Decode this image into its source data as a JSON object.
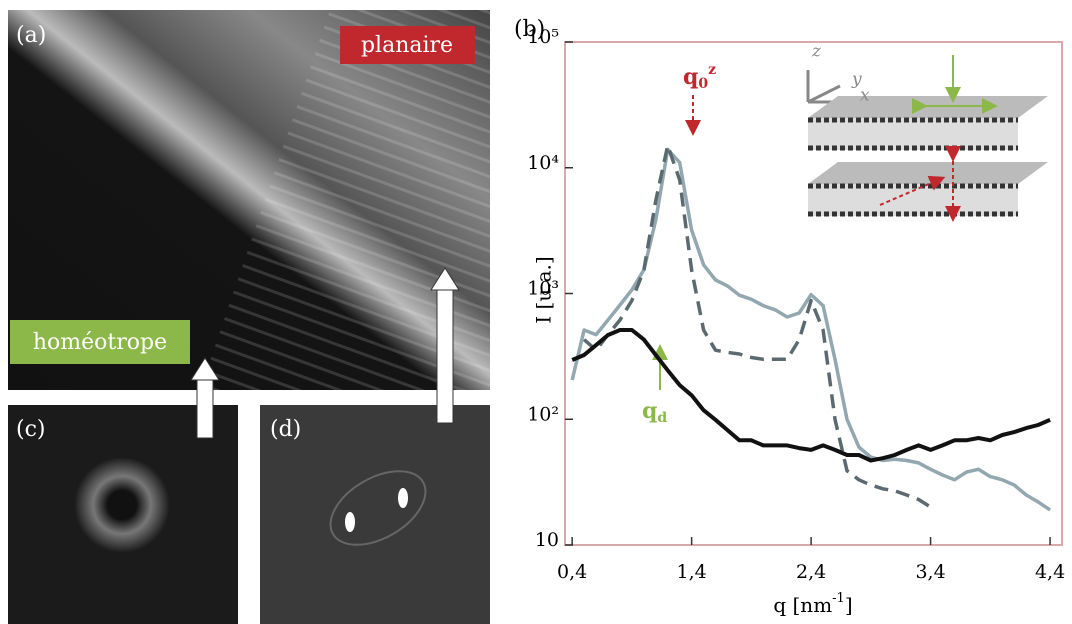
{
  "panels": {
    "a": {
      "label": "(a)",
      "planar": "planaire",
      "homeotropic": "homéotrope"
    },
    "c": {
      "label": "(c)"
    },
    "d": {
      "label": "(d)"
    }
  },
  "chart_data": {
    "type": "line",
    "panel_label": "(b)",
    "y_label": "I [u.a.]",
    "x_label": {
      "text": "q [nm",
      "sup": "-1",
      "end": "]"
    },
    "log_y": true,
    "xlim": [
      0.34,
      4.5
    ],
    "ylim": [
      10,
      100000
    ],
    "xticks": [
      {
        "value": 0.4,
        "label": "0,4"
      },
      {
        "value": 1.4,
        "label": "1,4"
      },
      {
        "value": 2.4,
        "label": "2,4"
      },
      {
        "value": 3.4,
        "label": "3,4"
      },
      {
        "value": 4.4,
        "label": "4,4"
      }
    ],
    "yticks": [
      10,
      {
        "value": 100,
        "label": "10²"
      },
      {
        "value": 1000,
        "label": "10³"
      },
      {
        "value": 10000,
        "label": "10⁴"
      },
      {
        "value": 100000,
        "label": "10⁵"
      }
    ],
    "x": [
      0.4,
      0.5,
      0.6,
      0.7,
      0.8,
      0.9,
      1.0,
      1.1,
      1.2,
      1.3,
      1.4,
      1.5,
      1.6,
      1.7,
      1.8,
      1.9,
      2.0,
      2.1,
      2.2,
      2.3,
      2.4,
      2.5,
      2.6,
      2.7,
      2.8,
      2.9,
      3.0,
      3.1,
      3.2,
      3.3,
      3.4,
      3.5,
      3.6,
      3.7,
      3.8,
      3.9,
      4.0,
      4.1,
      4.2,
      4.3,
      4.4
    ],
    "series": [
      {
        "color": "#93a7b0",
        "style": "solid",
        "values": [
          205,
          513,
          470,
          615,
          810,
          1070,
          1540,
          3850,
          14000,
          11000,
          3200,
          1690,
          1280,
          1150,
          970,
          900,
          800,
          740,
          650,
          700,
          980,
          800,
          300,
          100,
          60,
          50,
          47,
          48,
          47,
          45,
          40,
          36,
          33,
          38,
          40,
          35,
          33,
          30,
          25,
          22,
          19
        ]
      },
      {
        "color": "#5b6a70",
        "style": "dashed",
        "values": [
          null,
          430,
          354,
          470,
          615,
          880,
          1540,
          5500,
          15000,
          8000,
          1540,
          513,
          354,
          340,
          330,
          310,
          300,
          300,
          300,
          430,
          880,
          513,
          100,
          39,
          33,
          30,
          28,
          27,
          25,
          23,
          20,
          null,
          null,
          null,
          null,
          null,
          null,
          null,
          null,
          null,
          null
        ]
      },
      {
        "color": "#111111",
        "style": "solid",
        "values": [
          296,
          324,
          389,
          468,
          513,
          513,
          430,
          324,
          245,
          187,
          155,
          118,
          99,
          82,
          68,
          68,
          62,
          62,
          62,
          59,
          57,
          62,
          57,
          52,
          52,
          47,
          49,
          52,
          57,
          62,
          57,
          62,
          68,
          68,
          71,
          68,
          75,
          79,
          85,
          90,
          99
        ]
      }
    ],
    "annotations": [
      {
        "text": "q",
        "sub": "0",
        "sup": "z",
        "color": "#c0282d"
      },
      {
        "text": "q",
        "sub": "d",
        "color": "#8cb84a"
      }
    ],
    "inset_axes": [
      "z",
      "y",
      "x"
    ]
  }
}
